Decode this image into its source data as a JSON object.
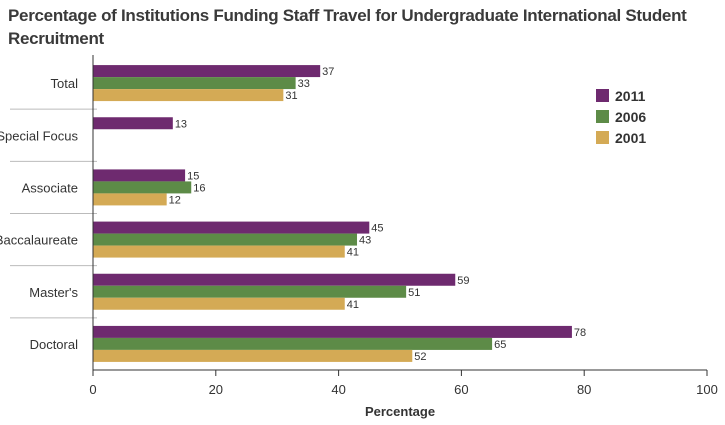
{
  "chart_data": {
    "type": "bar",
    "orientation": "horizontal",
    "title": "Percentage of Institutions Funding Staff Travel for Undergraduate International Student Recruitment",
    "xlabel": "Percentage",
    "ylabel": "",
    "xlim": [
      0,
      100
    ],
    "xticks": [
      "0",
      "20",
      "40",
      "60",
      "80",
      "100"
    ],
    "categories": [
      "Total",
      "Special Focus",
      "Associate",
      "Baccalaureate",
      "Master's",
      "Doctoral"
    ],
    "series": [
      {
        "name": "2011",
        "color": "#6e2a6f",
        "values": [
          37,
          13,
          15,
          45,
          59,
          78
        ]
      },
      {
        "name": "2006",
        "color": "#5d8b47",
        "values": [
          33,
          null,
          16,
          43,
          51,
          65
        ]
      },
      {
        "name": "2001",
        "color": "#d4aa55",
        "values": [
          31,
          null,
          12,
          41,
          41,
          52
        ]
      }
    ],
    "legend_position": "right",
    "grid": false
  }
}
